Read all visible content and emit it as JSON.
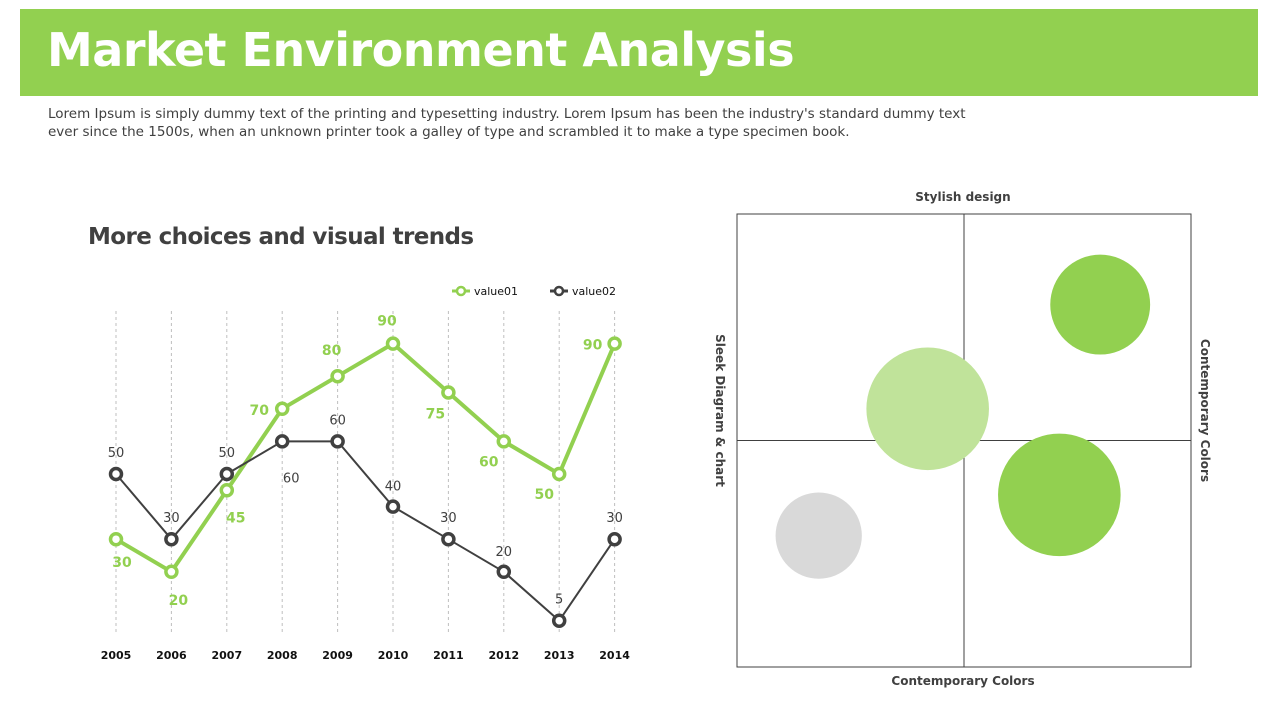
{
  "header": {
    "title": "Market Environment Analysis"
  },
  "intro": {
    "text": "Lorem Ipsum is simply dummy text of the printing and typesetting industry. Lorem Ipsum has been the industry's standard dummy text ever since the 1500s, when an unknown printer took a galley of type and scrambled it to make a type specimen book."
  },
  "chart_data": [
    {
      "type": "line",
      "title": "More choices and visual trends",
      "categories": [
        "2005",
        "2006",
        "2007",
        "2008",
        "2009",
        "2010",
        "2011",
        "2012",
        "2013",
        "2014"
      ],
      "series": [
        {
          "name": "value01",
          "values": [
            30,
            20,
            45,
            70,
            80,
            90,
            75,
            60,
            50,
            90
          ],
          "color": "#92d050"
        },
        {
          "name": "value02",
          "values": [
            50,
            30,
            50,
            60,
            60,
            40,
            30,
            20,
            5,
            30
          ],
          "color": "#404040"
        }
      ],
      "ylim": [
        0,
        100
      ],
      "grid": "vertical dashed",
      "legend": "top-right"
    },
    {
      "type": "scatter",
      "subtype": "quadrant bubble",
      "top_label": "Stylish design",
      "bottom_label": "Contemporary Colors",
      "left_label": "Sleek Diagram & chart",
      "right_label": "Contemporary Colors",
      "bubbles": [
        {
          "x": 0.8,
          "y": 0.8,
          "size": 0.22,
          "color": "#92d050"
        },
        {
          "x": 0.42,
          "y": 0.57,
          "size": 0.27,
          "color": "#c0e39a"
        },
        {
          "x": 0.71,
          "y": 0.38,
          "size": 0.27,
          "color": "#92d050"
        },
        {
          "x": 0.18,
          "y": 0.29,
          "size": 0.19,
          "color": "#d9d9d9"
        }
      ]
    }
  ]
}
